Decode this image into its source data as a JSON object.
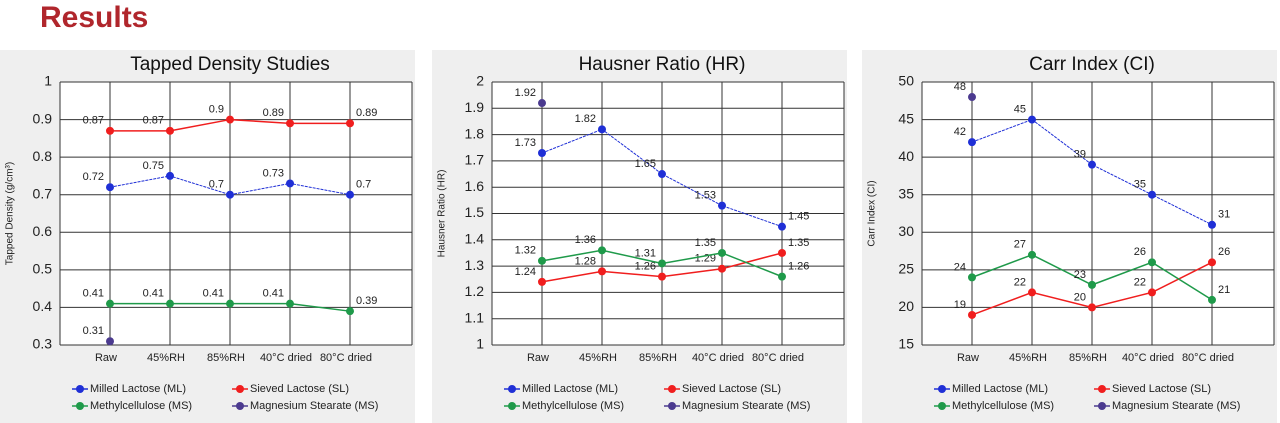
{
  "header": {
    "title": "Results"
  },
  "chart_data": [
    {
      "type": "line",
      "title": "Tapped Density Studies",
      "ylabel": "Tapped Density (g/cm³)",
      "categories": [
        "Raw",
        "45%RH",
        "85%RH",
        "40°C dried",
        "80°C dried"
      ],
      "ylim": [
        0.3,
        1
      ],
      "yticks": [
        0.3,
        0.4,
        0.5,
        0.6,
        0.7,
        0.8,
        0.9,
        1
      ],
      "grid": true,
      "series": [
        {
          "name": "Milled Lactose (ML)",
          "color": "#1f2fd6",
          "values": [
            0.72,
            0.75,
            0.7,
            0.73,
            0.7
          ]
        },
        {
          "name": "Sieved Lactose (SL)",
          "color": "#f01e1e",
          "values": [
            0.87,
            0.87,
            0.9,
            0.89,
            0.89
          ]
        },
        {
          "name": "Methylcellulose (MS)",
          "color": "#1f9a4a",
          "values": [
            0.41,
            0.41,
            0.41,
            0.41,
            0.39
          ]
        },
        {
          "name": "Magnesium Stearate (MS)",
          "color": "#4b3a8f",
          "values": [
            0.31,
            null,
            null,
            null,
            null
          ]
        }
      ]
    },
    {
      "type": "line",
      "title": "Hausner Ratio (HR)",
      "ylabel": "Hausner Ratio (HR)",
      "categories": [
        "Raw",
        "45%RH",
        "85%RH",
        "40°C dried",
        "80°C dried"
      ],
      "ylim": [
        1,
        2
      ],
      "yticks": [
        1,
        1.1,
        1.2,
        1.3,
        1.4,
        1.5,
        1.6,
        1.7,
        1.8,
        1.9,
        2
      ],
      "grid": true,
      "series": [
        {
          "name": "Milled Lactose (ML)",
          "color": "#1f2fd6",
          "values": [
            1.73,
            1.82,
            1.65,
            1.53,
            1.45
          ]
        },
        {
          "name": "Sieved Lactose (SL)",
          "color": "#f01e1e",
          "values": [
            1.24,
            1.28,
            1.26,
            1.29,
            1.35
          ]
        },
        {
          "name": "Methylcellulose (MS)",
          "color": "#1f9a4a",
          "values": [
            1.32,
            1.36,
            1.31,
            1.35,
            1.26
          ]
        },
        {
          "name": "Magnesium Stearate (MS)",
          "color": "#4b3a8f",
          "values": [
            1.92,
            null,
            null,
            null,
            null
          ]
        }
      ]
    },
    {
      "type": "line",
      "title": "Carr Index (CI)",
      "ylabel": "Carr Index (CI)",
      "categories": [
        "Raw",
        "45%RH",
        "85%RH",
        "40°C dried",
        "80°C dried"
      ],
      "ylim": [
        15,
        50
      ],
      "yticks": [
        15,
        20,
        25,
        30,
        35,
        40,
        45,
        50
      ],
      "grid": true,
      "series": [
        {
          "name": "Milled Lactose (ML)",
          "color": "#1f2fd6",
          "values": [
            42,
            45,
            39,
            35,
            31
          ]
        },
        {
          "name": "Sieved Lactose (SL)",
          "color": "#f01e1e",
          "values": [
            19,
            22,
            20,
            22,
            26
          ]
        },
        {
          "name": "Methylcellulose (MS)",
          "color": "#1f9a4a",
          "values": [
            24,
            27,
            23,
            26,
            21
          ]
        },
        {
          "name": "Magnesium Stearate (MS)",
          "color": "#4b3a8f",
          "values": [
            48,
            null,
            null,
            null,
            null
          ]
        }
      ]
    }
  ]
}
